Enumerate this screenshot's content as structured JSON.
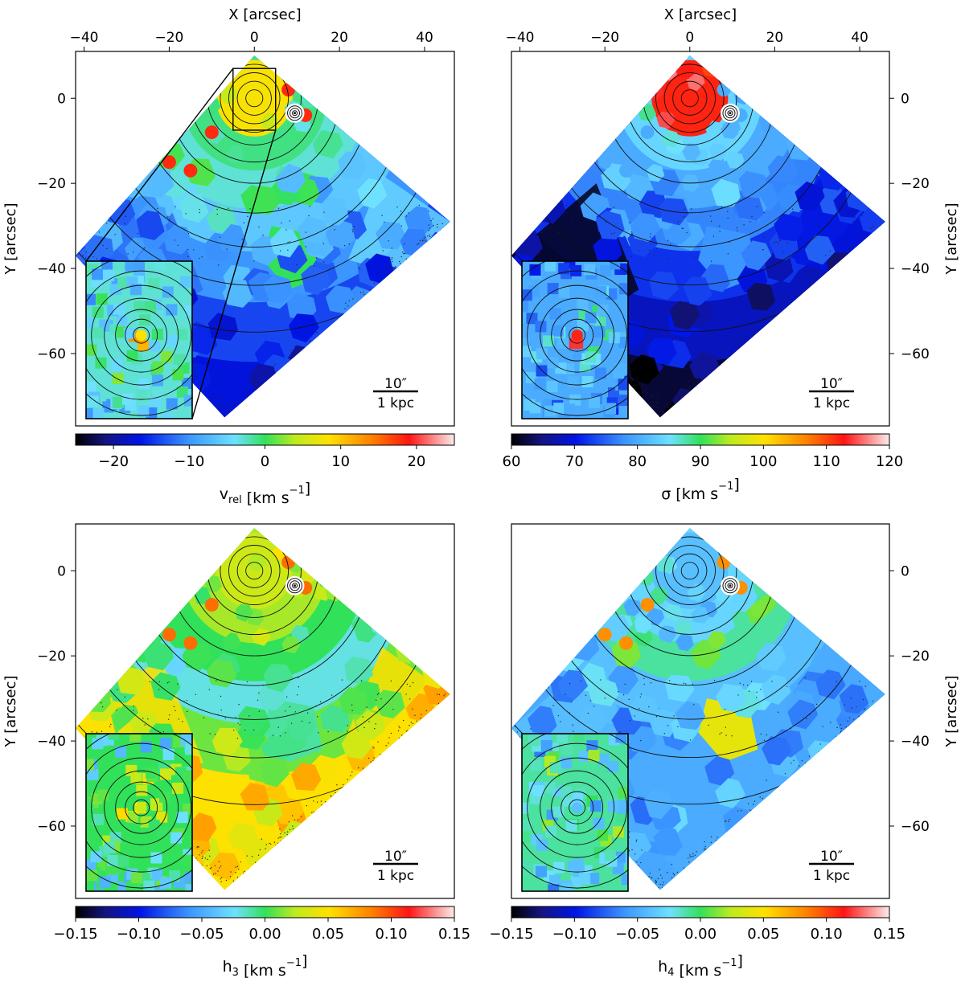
{
  "chart_data": [
    {
      "type": "heatmap",
      "panel": "top-left",
      "quantity": "v_rel",
      "xlabel": "X [arcsec]",
      "ylabel": "Y [arcsec]",
      "x_ticks": [
        -40,
        -20,
        0,
        20,
        40
      ],
      "y_ticks": [
        0,
        -20,
        -40,
        -60
      ],
      "x_tick_labels": [
        "−40",
        "−20",
        "0",
        "20",
        "40"
      ],
      "y_tick_labels": [
        "0",
        "−20",
        "−40",
        "−60"
      ],
      "xlim": [
        -42,
        47
      ],
      "ylim": [
        -77,
        11
      ],
      "colorbar": {
        "label_main": "v",
        "label_sub": "rel",
        "label_unit": " [km s",
        "label_exp": "−1",
        "label_end": "]",
        "range": [
          -25,
          25
        ],
        "ticks": [
          -20,
          -10,
          0,
          10,
          20
        ],
        "tick_labels": [
          "−20",
          "−10",
          "0",
          "10",
          "20"
        ],
        "colormap": "sauron"
      },
      "scale_bar": {
        "angular": "10″",
        "physical": "1 kpc"
      },
      "inset": true,
      "zoom_box": true,
      "levels": {
        "center": 8,
        "ring1": -1,
        "ring2": -3,
        "ring3": -6,
        "ring4": -10,
        "lower_band": -14,
        "bottom": -17,
        "left_wing": -12,
        "right_wing": -5,
        "green_patch": 0,
        "spot_red": 18
      }
    },
    {
      "type": "heatmap",
      "panel": "top-right",
      "quantity": "sigma",
      "xlabel": "X [arcsec]",
      "ylabel": "Y [arcsec]",
      "x_ticks": [
        -40,
        -20,
        0,
        20,
        40
      ],
      "y_ticks": [
        0,
        -20,
        -40,
        -60
      ],
      "x_tick_labels": [
        "−40",
        "−20",
        "0",
        "20",
        "40"
      ],
      "y_tick_labels": [
        "0",
        "−20",
        "−40",
        "−60"
      ],
      "xlim": [
        -42,
        47
      ],
      "ylim": [
        -77,
        11
      ],
      "colorbar": {
        "label_main": "σ",
        "label_sub": "",
        "label_unit": " [km s",
        "label_exp": "−1",
        "label_end": "]",
        "range": [
          60,
          120
        ],
        "ticks": [
          60,
          70,
          80,
          90,
          100,
          110,
          120
        ],
        "tick_labels": [
          "60",
          "70",
          "80",
          "90",
          "100",
          "110",
          "120"
        ],
        "colormap": "sauron"
      },
      "scale_bar": {
        "angular": "10″",
        "physical": "1 kpc"
      },
      "inset": true,
      "zoom_box": false,
      "levels": {
        "center": 112,
        "ring1": 84,
        "ring2": 80,
        "ring3": 77,
        "ring4": 72,
        "lower_band": 68,
        "bottom": 62,
        "left_wing": 61,
        "right_wing": 70,
        "green_patch": 78,
        "spot_red": 80
      }
    },
    {
      "type": "heatmap",
      "panel": "bottom-left",
      "quantity": "h3",
      "xlabel": "",
      "ylabel": "Y [arcsec]",
      "x_ticks": [],
      "y_ticks": [
        0,
        -20,
        -40,
        -60
      ],
      "x_tick_labels": [],
      "y_tick_labels": [
        "0",
        "−20",
        "−40",
        "−60"
      ],
      "xlim": [
        -42,
        47
      ],
      "ylim": [
        -77,
        11
      ],
      "colorbar": {
        "label_main": "h",
        "label_sub": "3",
        "label_unit": " [km s",
        "label_exp": "−1",
        "label_end": "]",
        "range": [
          -0.15,
          0.15
        ],
        "ticks": [
          -0.15,
          -0.1,
          -0.05,
          0.0,
          0.05,
          0.1,
          0.15
        ],
        "tick_labels": [
          "−0.15",
          "−0.10",
          "−0.05",
          "0.00",
          "0.05",
          "0.10",
          "0.15"
        ],
        "colormap": "sauron"
      },
      "scale_bar": {
        "angular": "10″",
        "physical": "1 kpc"
      },
      "inset": true,
      "zoom_box": false,
      "levels": {
        "center": 0.03,
        "ring1": 0.02,
        "ring2": 0.0,
        "ring3": -0.02,
        "ring4": 0.01,
        "lower_band": 0.05,
        "bottom": 0.05,
        "left_wing": 0.05,
        "right_wing": 0.05,
        "green_patch": -0.01,
        "spot_red": 0.09
      }
    },
    {
      "type": "heatmap",
      "panel": "bottom-right",
      "quantity": "h4",
      "xlabel": "",
      "ylabel": "Y [arcsec]",
      "x_ticks": [],
      "y_ticks": [
        0,
        -20,
        -40,
        -60
      ],
      "x_tick_labels": [],
      "y_tick_labels": [
        "0",
        "−20",
        "−40",
        "−60"
      ],
      "xlim": [
        -42,
        47
      ],
      "ylim": [
        -77,
        11
      ],
      "colorbar": {
        "label_main": "h",
        "label_sub": "4",
        "label_unit": " [km s",
        "label_exp": "−1",
        "label_end": "]",
        "range": [
          -0.15,
          0.15
        ],
        "ticks": [
          -0.15,
          -0.1,
          -0.05,
          0.0,
          0.05,
          0.1,
          0.15
        ],
        "tick_labels": [
          "−0.15",
          "−0.10",
          "−0.05",
          "0.00",
          "0.05",
          "0.10",
          "0.15"
        ],
        "colormap": "sauron"
      },
      "scale_bar": {
        "angular": "10″",
        "physical": "1 kpc"
      },
      "inset": true,
      "zoom_box": false,
      "levels": {
        "center": -0.04,
        "ring1": -0.03,
        "ring2": -0.01,
        "ring3": -0.04,
        "ring4": -0.05,
        "lower_band": -0.05,
        "bottom": -0.05,
        "left_wing": -0.04,
        "right_wing": -0.05,
        "green_patch": 0.04,
        "spot_red": 0.08
      }
    }
  ]
}
